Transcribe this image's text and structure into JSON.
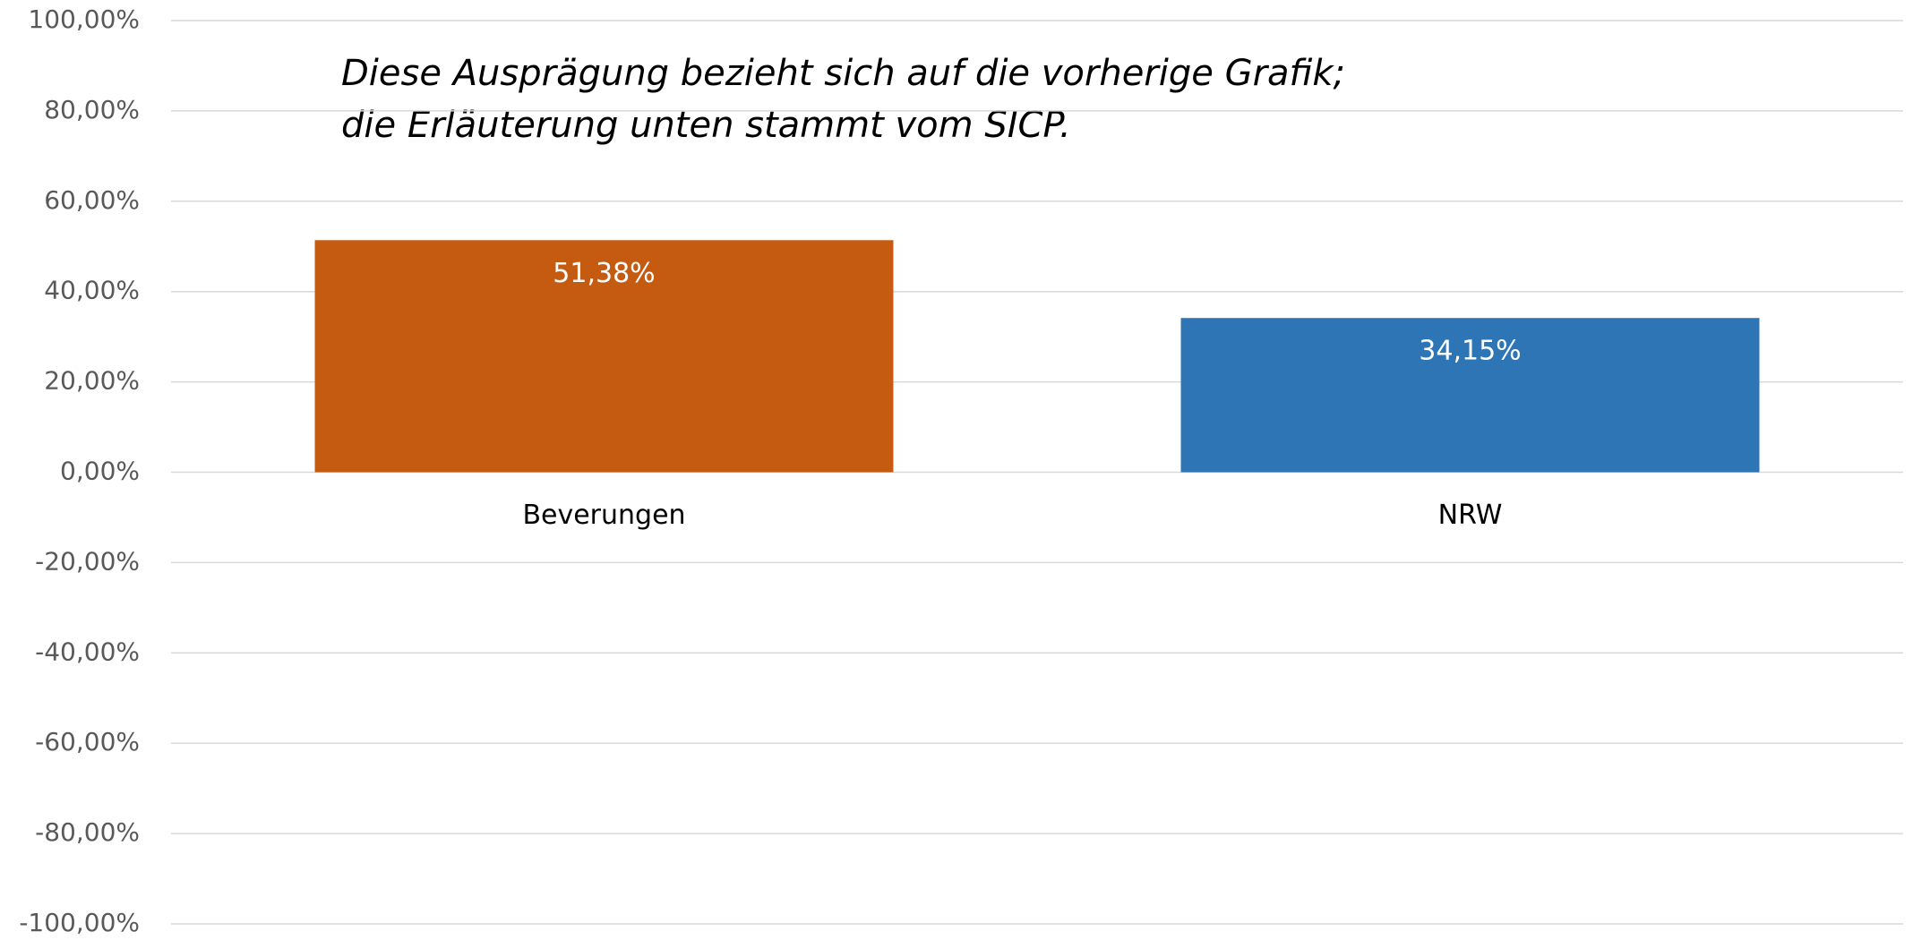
{
  "chart_data": {
    "type": "bar",
    "annotation": [
      "Diese Ausprägung bezieht sich auf die vorherige Grafik;",
      "die Erläuterung unten stammt vom SICP."
    ],
    "categories": [
      "Beverungen",
      "NRW"
    ],
    "values": [
      51.38,
      34.15
    ],
    "value_labels": [
      "51,38%",
      "34,15%"
    ],
    "colors": [
      "#c55a11",
      "#2e75b6"
    ],
    "ylim": [
      -100,
      100
    ],
    "yticks": [
      {
        "value": -100,
        "label": "-100,00%"
      },
      {
        "value": -80,
        "label": "-80,00%"
      },
      {
        "value": -60,
        "label": "-60,00%"
      },
      {
        "value": -40,
        "label": "-40,00%"
      },
      {
        "value": -20,
        "label": "-20,00%"
      },
      {
        "value": 0,
        "label": "0,00%"
      },
      {
        "value": 20,
        "label": "20,00%"
      },
      {
        "value": 40,
        "label": "40,00%"
      },
      {
        "value": 60,
        "label": "60,00%"
      },
      {
        "value": 80,
        "label": "80,00%"
      },
      {
        "value": 100,
        "label": "100,00%"
      }
    ],
    "grid": true
  }
}
